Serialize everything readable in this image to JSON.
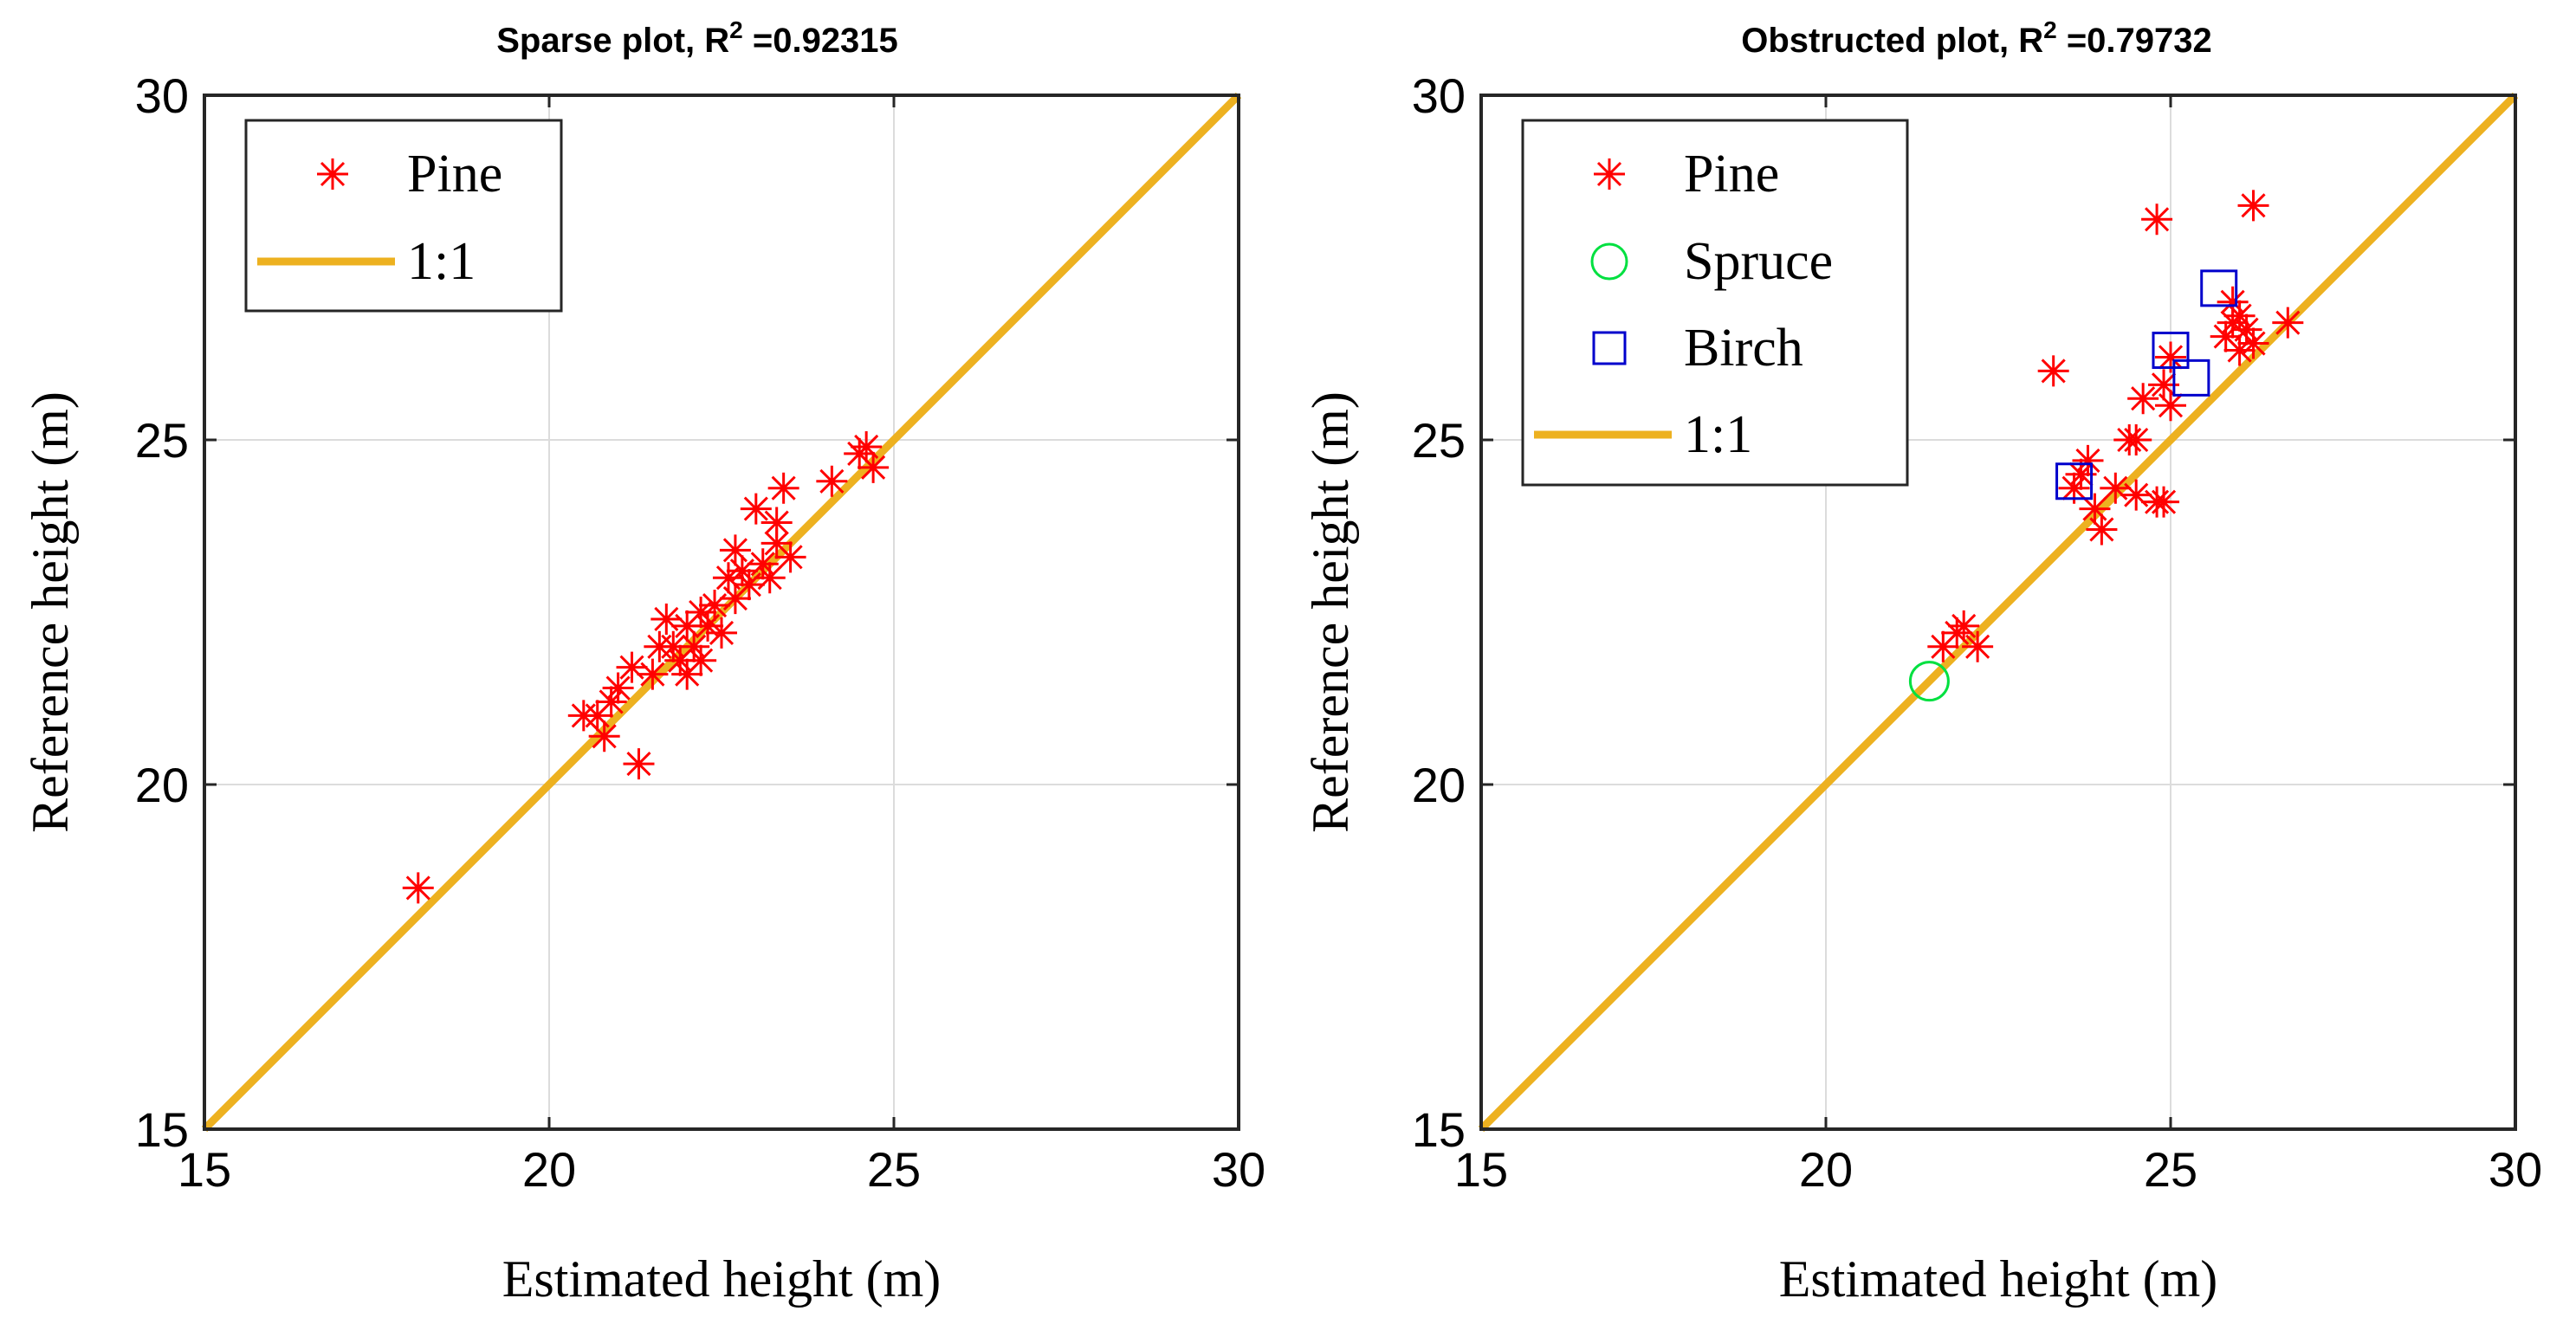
{
  "chart_data": [
    {
      "type": "scatter",
      "title": "Sparse plot, R",
      "title_sup": "2",
      "title_suffix": " =0.92315",
      "xlabel": "Estimated height (m)",
      "ylabel": "Reference height (m)",
      "xlim": [
        15,
        30
      ],
      "ylim": [
        15,
        30
      ],
      "xticks": [
        "15",
        "20",
        "25",
        "30"
      ],
      "yticks": [
        "15",
        "20",
        "25",
        "30"
      ],
      "grid": true,
      "legend_position": "top-left",
      "line": {
        "name": "1:1",
        "points": [
          [
            15,
            15
          ],
          [
            30,
            30
          ]
        ],
        "color": "#EDB120"
      },
      "series": [
        {
          "name": "Pine",
          "marker": "asterisk",
          "color": "#FF0000",
          "points": [
            [
              18.1,
              18.5
            ],
            [
              20.5,
              21.0
            ],
            [
              20.7,
              21.0
            ],
            [
              20.8,
              20.7
            ],
            [
              20.9,
              21.2
            ],
            [
              21.0,
              21.4
            ],
            [
              21.2,
              21.7
            ],
            [
              21.3,
              20.3
            ],
            [
              21.5,
              21.6
            ],
            [
              21.6,
              22.0
            ],
            [
              21.7,
              22.4
            ],
            [
              21.8,
              22.0
            ],
            [
              21.9,
              21.8
            ],
            [
              22.0,
              21.6
            ],
            [
              22.0,
              22.3
            ],
            [
              22.1,
              22.0
            ],
            [
              22.2,
              21.8
            ],
            [
              22.2,
              22.5
            ],
            [
              22.3,
              22.3
            ],
            [
              22.4,
              22.6
            ],
            [
              22.5,
              22.2
            ],
            [
              22.6,
              23.0
            ],
            [
              22.7,
              23.4
            ],
            [
              22.7,
              22.7
            ],
            [
              22.8,
              23.1
            ],
            [
              22.9,
              22.9
            ],
            [
              23.0,
              24.0
            ],
            [
              23.1,
              23.2
            ],
            [
              23.2,
              23.0
            ],
            [
              23.3,
              23.5
            ],
            [
              23.4,
              24.3
            ],
            [
              23.5,
              23.3
            ],
            [
              23.3,
              23.8
            ],
            [
              24.1,
              24.4
            ],
            [
              24.5,
              24.8
            ],
            [
              24.6,
              24.9
            ],
            [
              24.7,
              24.6
            ]
          ]
        }
      ]
    },
    {
      "type": "scatter",
      "title": "Obstructed plot, R",
      "title_sup": "2",
      "title_suffix": " =0.79732",
      "xlabel": "Estimated height (m)",
      "ylabel": "Reference height (m)",
      "xlim": [
        15,
        30
      ],
      "ylim": [
        15,
        30
      ],
      "xticks": [
        "15",
        "20",
        "25",
        "30"
      ],
      "yticks": [
        "15",
        "20",
        "25",
        "30"
      ],
      "grid": true,
      "legend_position": "top-left",
      "line": {
        "name": "1:1",
        "points": [
          [
            15,
            15
          ],
          [
            30,
            30
          ]
        ],
        "color": "#EDB120"
      },
      "series": [
        {
          "name": "Pine",
          "marker": "asterisk",
          "color": "#FF0000",
          "points": [
            [
              21.7,
              22.0
            ],
            [
              21.9,
              22.2
            ],
            [
              22.0,
              22.3
            ],
            [
              22.2,
              22.0
            ],
            [
              23.3,
              26.0
            ],
            [
              23.6,
              24.3
            ],
            [
              23.7,
              24.5
            ],
            [
              23.8,
              24.7
            ],
            [
              23.9,
              24.0
            ],
            [
              24.0,
              23.7
            ],
            [
              24.2,
              24.3
            ],
            [
              24.4,
              25.0
            ],
            [
              24.5,
              25.0
            ],
            [
              24.5,
              24.2
            ],
            [
              24.6,
              25.6
            ],
            [
              24.8,
              24.1
            ],
            [
              24.9,
              24.1
            ],
            [
              24.8,
              28.2
            ],
            [
              24.9,
              25.8
            ],
            [
              25.0,
              26.2
            ],
            [
              25.0,
              25.5
            ],
            [
              25.8,
              26.5
            ],
            [
              25.9,
              26.7
            ],
            [
              25.9,
              27.0
            ],
            [
              26.0,
              26.3
            ],
            [
              26.0,
              26.8
            ],
            [
              26.1,
              26.6
            ],
            [
              26.2,
              28.4
            ],
            [
              26.2,
              26.4
            ],
            [
              26.7,
              26.7
            ]
          ]
        },
        {
          "name": "Spruce",
          "marker": "circle",
          "color": "#00E040",
          "points": [
            [
              21.5,
              21.5
            ]
          ]
        },
        {
          "name": "Birch",
          "marker": "square",
          "color": "#0000CC",
          "points": [
            [
              23.6,
              24.4
            ],
            [
              25.0,
              26.3
            ],
            [
              25.3,
              25.9
            ],
            [
              25.7,
              27.2
            ]
          ]
        }
      ]
    }
  ]
}
